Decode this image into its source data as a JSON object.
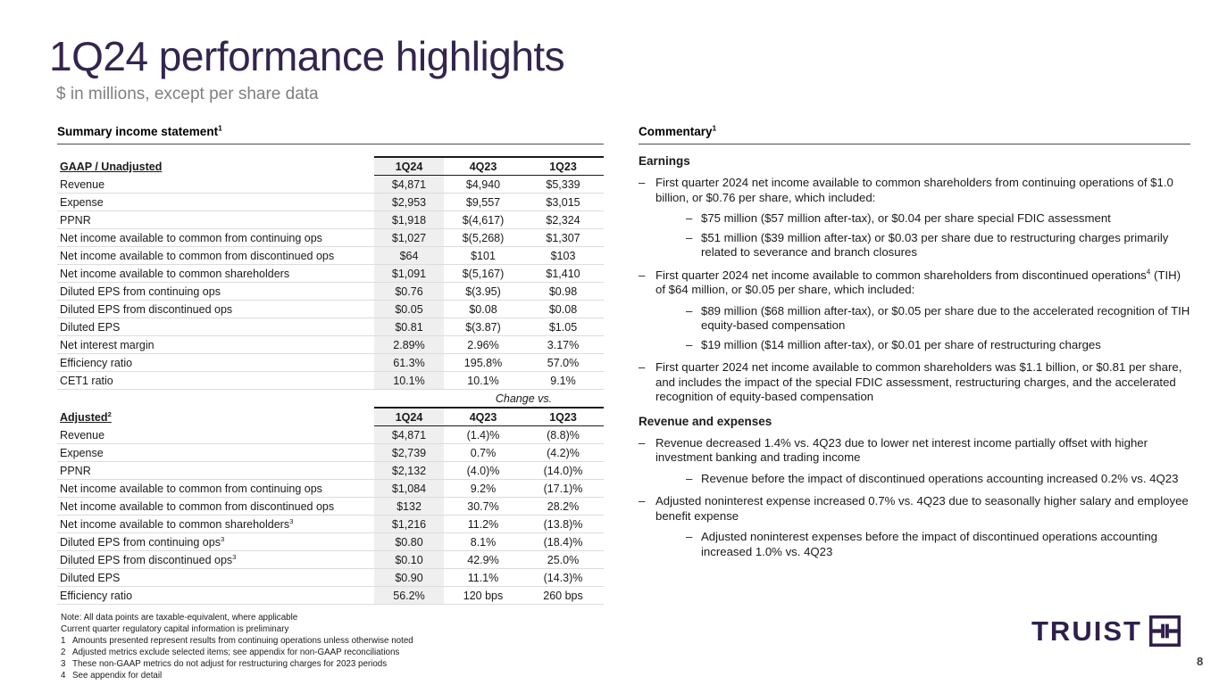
{
  "slide": {
    "title": "1Q24 performance highlights",
    "subtitle": "$ in millions, except per share data",
    "page_number": "8"
  },
  "colors": {
    "truist_purple": "#2E1F4C",
    "title_purple": "#33254E",
    "column_shade": "#EFEFEF",
    "subtitle_gray": "#7f7f7f"
  },
  "summary_table": {
    "section_title": "Summary income statement^1^",
    "gaap": {
      "label": "GAAP / Unadjusted",
      "columns": [
        "1Q24",
        "4Q23",
        "1Q23"
      ],
      "rows": [
        {
          "label": "Revenue",
          "values": [
            "$4,871",
            "$4,940",
            "$5,339"
          ]
        },
        {
          "label": "Expense",
          "values": [
            "$2,953",
            "$9,557",
            "$3,015"
          ]
        },
        {
          "label": "PPNR",
          "values": [
            "$1,918",
            "$(4,617)",
            "$2,324"
          ]
        },
        {
          "label": "Net income available to common from continuing ops",
          "values": [
            "$1,027",
            "$(5,268)",
            "$1,307"
          ]
        },
        {
          "label": "Net income available to common from discontinued ops",
          "values": [
            "$64",
            "$101",
            "$103"
          ]
        },
        {
          "label": "Net income available to common shareholders",
          "values": [
            "$1,091",
            "$(5,167)",
            "$1,410"
          ]
        },
        {
          "label": "Diluted EPS from continuing ops",
          "values": [
            "$0.76",
            "$(3.95)",
            "$0.98"
          ]
        },
        {
          "label": "Diluted EPS from discontinued ops",
          "values": [
            "$0.05",
            "$0.08",
            "$0.08"
          ]
        },
        {
          "label": "Diluted EPS",
          "values": [
            "$0.81",
            "$(3.87)",
            "$1.05"
          ]
        },
        {
          "label": "Net interest margin",
          "values": [
            "2.89%",
            "2.96%",
            "3.17%"
          ]
        },
        {
          "label": "Efficiency ratio",
          "values": [
            "61.3%",
            "195.8%",
            "57.0%"
          ]
        },
        {
          "label": "CET1 ratio",
          "values": [
            "10.1%",
            "10.1%",
            "9.1%"
          ]
        }
      ]
    },
    "change_vs_label": "Change vs.",
    "adjusted": {
      "label": "Adjusted^2^",
      "columns": [
        "1Q24",
        "4Q23",
        "1Q23"
      ],
      "rows": [
        {
          "label": "Revenue",
          "values": [
            "$4,871",
            "(1.4)%",
            "(8.8)%"
          ]
        },
        {
          "label": "Expense",
          "values": [
            "$2,739",
            "0.7%",
            "(4.2)%"
          ]
        },
        {
          "label": "PPNR",
          "values": [
            "$2,132",
            "(4.0)%",
            "(14.0)%"
          ]
        },
        {
          "label": "Net income available to common from continuing ops",
          "values": [
            "$1,084",
            "9.2%",
            "(17.1)%"
          ]
        },
        {
          "label": "Net income available to common from discontinued ops",
          "values": [
            "$132",
            "30.7%",
            "28.2%"
          ]
        },
        {
          "label": "Net income available to common shareholders^3^",
          "values": [
            "$1,216",
            "11.2%",
            "(13.8)%"
          ]
        },
        {
          "label": "Diluted EPS from continuing ops^3^",
          "values": [
            "$0.80",
            "8.1%",
            "(18.4)%"
          ]
        },
        {
          "label": "Diluted EPS from discontinued ops^3^",
          "values": [
            "$0.10",
            "42.9%",
            "25.0%"
          ]
        },
        {
          "label": "Diluted EPS",
          "values": [
            "$0.90",
            "11.1%",
            "(14.3)%"
          ]
        },
        {
          "label": "Efficiency ratio",
          "values": [
            "56.2%",
            "120 bps",
            "260 bps"
          ]
        }
      ]
    }
  },
  "commentary": {
    "title": "Commentary^1^",
    "sections": [
      {
        "heading": "Earnings",
        "bullets": [
          {
            "level": 1,
            "text": "First quarter 2024 net income available to common shareholders from continuing operations of $1.0 billion, or $0.76 per share, which included:"
          },
          {
            "level": 2,
            "text": "$75 million ($57 million after-tax), or $0.04 per share special FDIC assessment"
          },
          {
            "level": 2,
            "text": "$51 million ($39 million after-tax) or $0.03 per share due to restructuring charges primarily related to severance and branch closures"
          },
          {
            "level": 1,
            "text": "First quarter 2024 net income available to common shareholders from discontinued operations^4^ (TIH) of $64 million, or $0.05 per share, which included:"
          },
          {
            "level": 2,
            "text": "$89 million ($68 million after-tax), or $0.05 per share due to the accelerated recognition of TIH equity-based compensation"
          },
          {
            "level": 2,
            "text": "$19 million ($14 million after-tax), or $0.01 per share of restructuring charges"
          },
          {
            "level": 1,
            "text": "First quarter 2024 net income available to common shareholders was $1.1 billion, or $0.81 per share, and includes the impact of the special FDIC assessment, restructuring charges, and the accelerated recognition of equity-based compensation"
          }
        ]
      },
      {
        "heading": "Revenue and expenses",
        "bullets": [
          {
            "level": 1,
            "text": "Revenue decreased 1.4% vs. 4Q23 due to lower net interest income partially offset with higher investment banking and trading income"
          },
          {
            "level": 2,
            "text": "Revenue before the impact of discontinued operations accounting increased 0.2% vs. 4Q23"
          },
          {
            "level": 1,
            "text": "Adjusted noninterest expense increased 0.7% vs. 4Q23 due to seasonally higher salary and employee benefit expense"
          },
          {
            "level": 2,
            "text": "Adjusted noninterest expenses before the impact of discontinued operations accounting increased 1.0% vs. 4Q23"
          }
        ]
      }
    ],
    "bullet_glyph": "–"
  },
  "footnotes": [
    {
      "num": "",
      "text": "Note: All data points are taxable-equivalent, where applicable"
    },
    {
      "num": "",
      "text": "Current quarter regulatory capital information is preliminary"
    },
    {
      "num": "1",
      "text": "Amounts presented represent results from continuing operations unless otherwise noted"
    },
    {
      "num": "2",
      "text": "Adjusted metrics exclude selected items; see appendix for non-GAAP reconciliations"
    },
    {
      "num": "3",
      "text": "These non-GAAP metrics do not adjust for restructuring charges for 2023 periods"
    },
    {
      "num": "4",
      "text": "See appendix for detail"
    }
  ],
  "logo": {
    "wordmark": "TRUIST",
    "mark": "truist-square-th-mark"
  }
}
